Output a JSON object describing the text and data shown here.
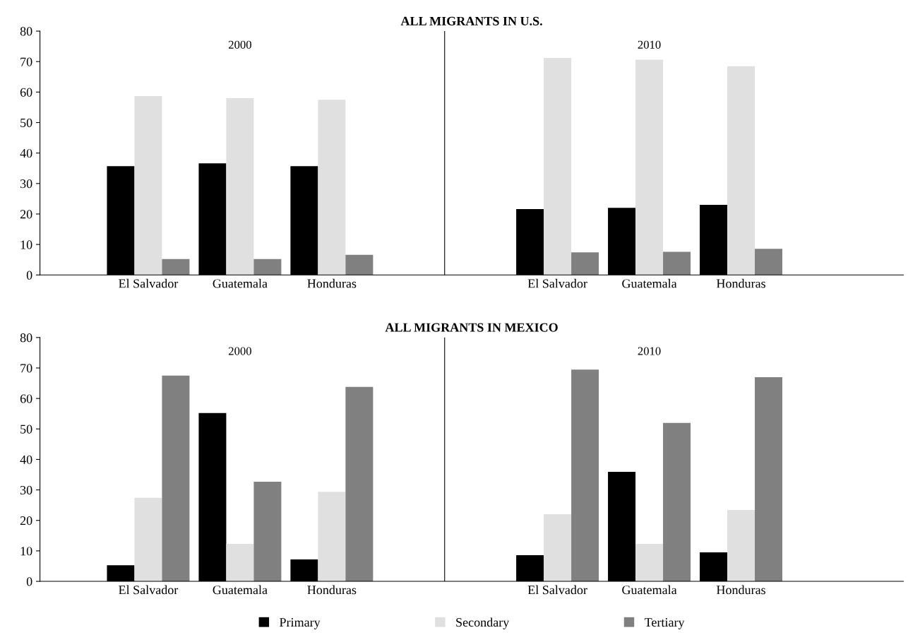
{
  "chart_data": [
    {
      "type": "bar",
      "title": "ALL MIGRANTS IN U.S.",
      "categories": [
        "El Salvador",
        "Guatemala",
        "Honduras",
        "El Salvador",
        "Guatemala",
        "Honduras"
      ],
      "series": [
        {
          "color": "#000000",
          "values": [
            35.7,
            36.6,
            35.7,
            21.6,
            22.0,
            23.0
          ]
        },
        {
          "color": "#e0e0e0",
          "values": [
            58.7,
            58.0,
            57.5,
            71.2,
            70.6,
            68.5
          ]
        },
        {
          "color": "#808080",
          "values": [
            5.2,
            5.2,
            6.6,
            7.4,
            7.6,
            8.6
          ]
        }
      ],
      "annotations": [
        "2000",
        "2010"
      ],
      "ylim": [
        0,
        80
      ],
      "yticks": [
        0,
        10,
        20,
        30,
        40,
        50,
        60,
        70,
        80
      ],
      "grid": false
    },
    {
      "type": "bar",
      "title": "ALL MIGRANTS IN MEXICO",
      "categories": [
        "El Salvador",
        "Guatemala",
        "Honduras",
        "El Salvador",
        "Guatemala",
        "Honduras"
      ],
      "series": [
        {
          "name": "Primary",
          "color": "#000000",
          "values": [
            5.3,
            55.2,
            7.2,
            8.6,
            35.9,
            9.5
          ]
        },
        {
          "name": "Secondary",
          "color": "#e0e0e0",
          "values": [
            27.4,
            12.3,
            29.4,
            22.0,
            12.3,
            23.4
          ]
        },
        {
          "name": "Tertiary",
          "color": "#808080",
          "values": [
            67.5,
            32.7,
            63.8,
            69.5,
            52.0,
            67.0
          ]
        }
      ],
      "annotations": [
        "2000",
        "2010"
      ],
      "ylim": [
        0,
        80
      ],
      "yticks": [
        0,
        10,
        20,
        30,
        40,
        50,
        60,
        70,
        80
      ],
      "grid": false,
      "legend": "bottom"
    }
  ]
}
